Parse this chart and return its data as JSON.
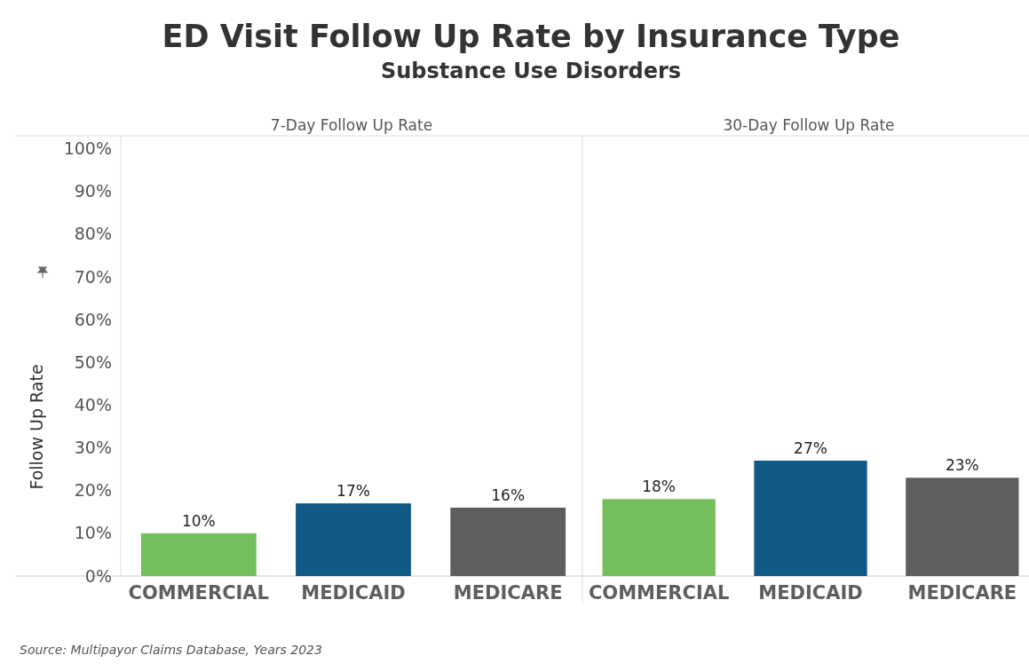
{
  "chart_data": [
    {
      "type": "bar",
      "title": "ED Visit Follow Up Rate by Insurance Type",
      "subtitle": "Substance Use Disorders",
      "ylabel": "Follow Up Rate",
      "categories": [
        "COMMERCIAL",
        "MEDICAID",
        "MEDICARE"
      ],
      "values": [
        10,
        17,
        16
      ],
      "colors": [
        "#74bf5c",
        "#105a87",
        "#5e5e60"
      ],
      "value_labels": [
        "10%",
        "17%",
        "16%"
      ],
      "ylim": [
        0,
        103
      ],
      "yticks": [
        {
          "value": 0,
          "label": "0%"
        },
        {
          "value": 10,
          "label": "10%"
        },
        {
          "value": 20,
          "label": "20%"
        },
        {
          "value": 30,
          "label": "30%"
        },
        {
          "value": 40,
          "label": "40%"
        },
        {
          "value": 50,
          "label": "50%"
        },
        {
          "value": 60,
          "label": "60%"
        },
        {
          "value": 70,
          "label": "70%"
        },
        {
          "value": 80,
          "label": "80%"
        },
        {
          "value": 90,
          "label": "90%"
        },
        {
          "value": 100,
          "label": "100%"
        }
      ],
      "grid": false,
      "annotations": [
        "7-Day Follow Up Rate",
        "Source: Multipayor Claims Database, Years 2023"
      ]
    },
    {
      "type": "bar",
      "categories": [
        "COMMERCIAL",
        "MEDICAID",
        "MEDICARE"
      ],
      "values": [
        18,
        27,
        23
      ],
      "colors": [
        "#74bf5c",
        "#105a87",
        "#5e5e60"
      ],
      "value_labels": [
        "18%",
        "27%",
        "23%"
      ],
      "ylim": [
        0,
        103
      ],
      "grid": false,
      "tick_labels": "x",
      "annotations": [
        "30-Day Follow Up Rate"
      ]
    }
  ]
}
